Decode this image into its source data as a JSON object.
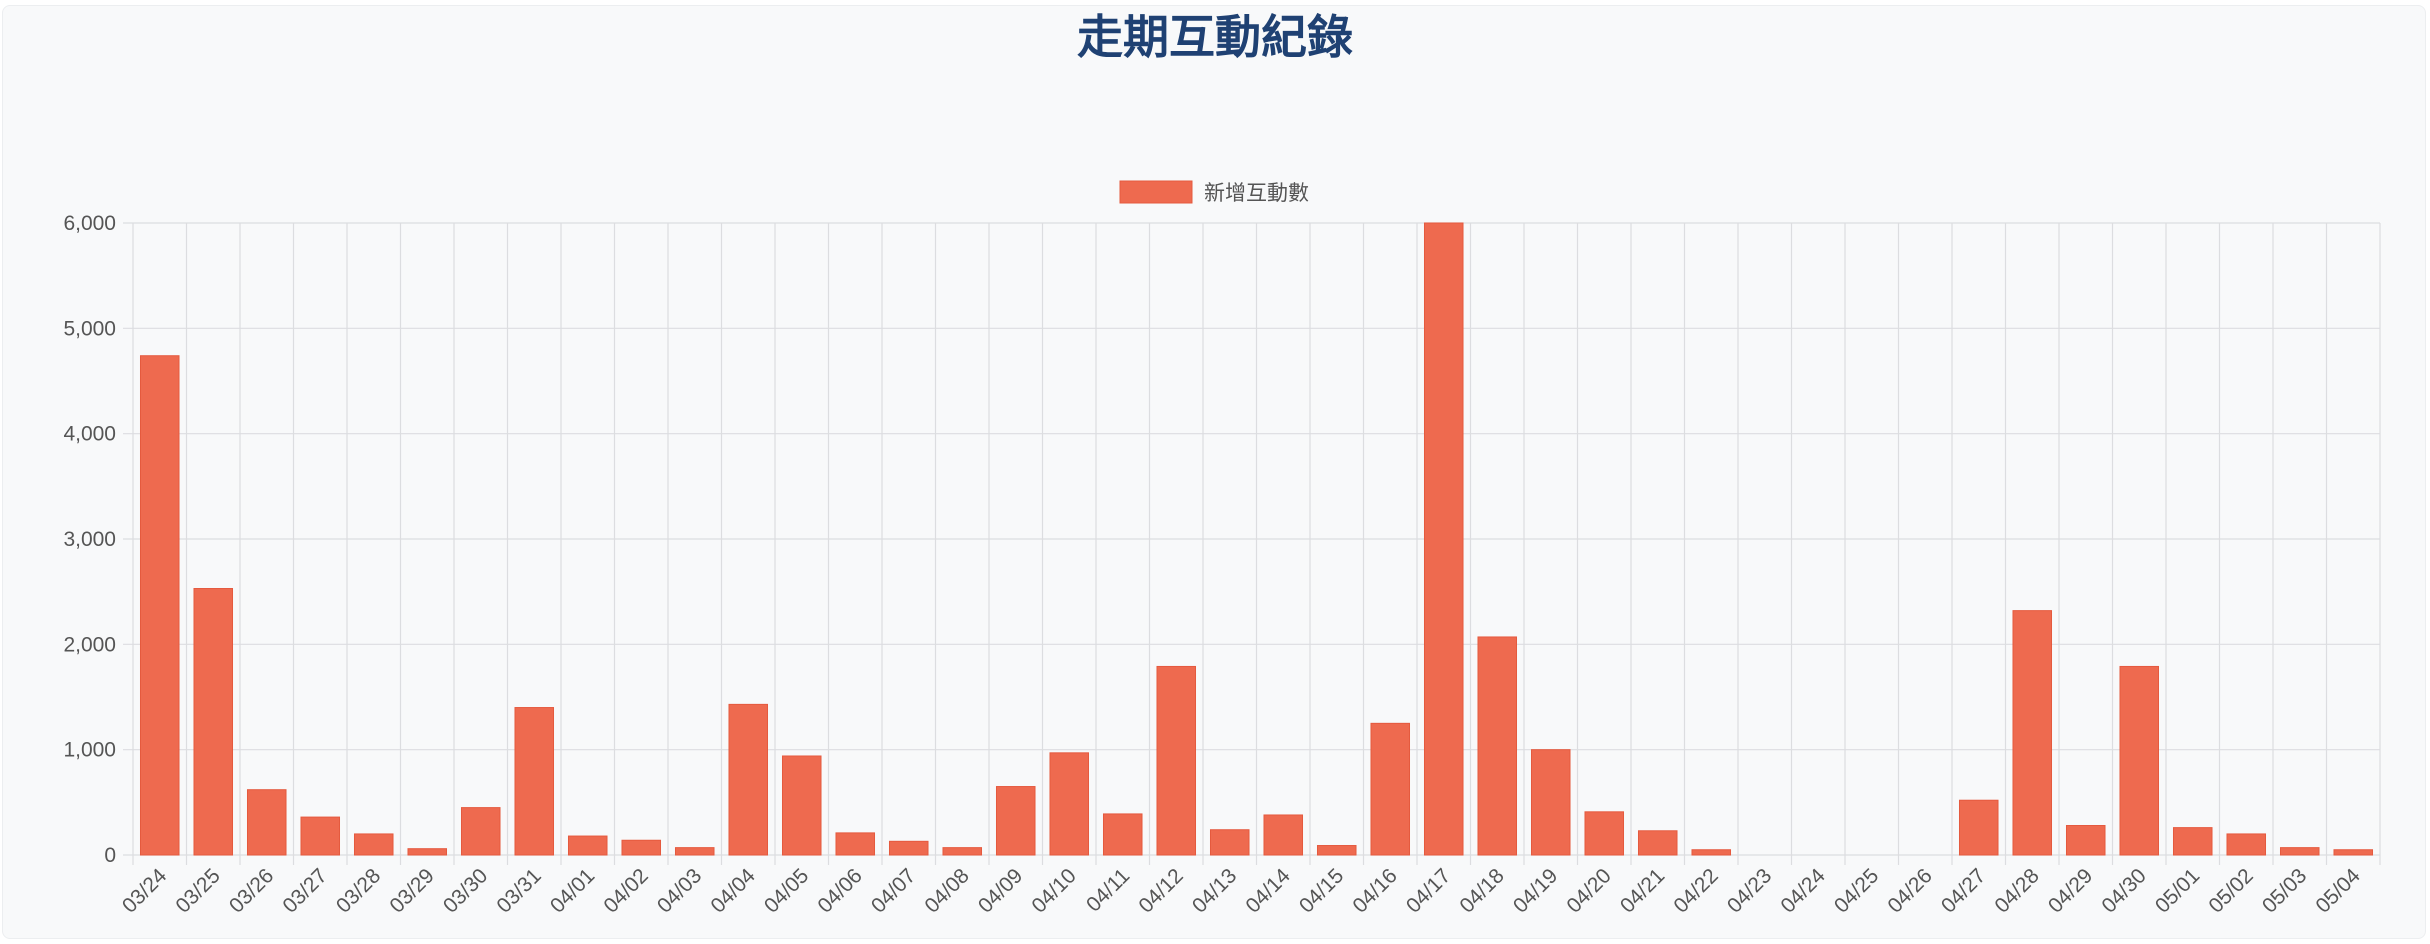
{
  "page": {
    "title": "走期互動紀錄"
  },
  "colors": {
    "bar": "#ee6a4f",
    "bar_border": "#e55a3f",
    "grid": "#dcdde0",
    "axis_text": "#555555",
    "title": "#1f4173"
  },
  "chart_data": {
    "type": "bar",
    "title": "走期互動紀錄",
    "xlabel": "",
    "ylabel": "",
    "ylim": [
      0,
      6000
    ],
    "yticks": [
      0,
      1000,
      2000,
      3000,
      4000,
      5000,
      6000
    ],
    "ytick_labels": [
      "0",
      "1,000",
      "2,000",
      "3,000",
      "4,000",
      "5,000",
      "6,000"
    ],
    "grid": true,
    "legend_position": "top-center",
    "categories": [
      "03/24",
      "03/25",
      "03/26",
      "03/27",
      "03/28",
      "03/29",
      "03/30",
      "03/31",
      "04/01",
      "04/02",
      "04/03",
      "04/04",
      "04/05",
      "04/06",
      "04/07",
      "04/08",
      "04/09",
      "04/10",
      "04/11",
      "04/12",
      "04/13",
      "04/14",
      "04/15",
      "04/16",
      "04/17",
      "04/18",
      "04/19",
      "04/20",
      "04/21",
      "04/22",
      "04/23",
      "04/24",
      "04/25",
      "04/26",
      "04/27",
      "04/28",
      "04/29",
      "04/30",
      "05/01",
      "05/02",
      "05/03",
      "05/04"
    ],
    "series": [
      {
        "name": "新增互動數",
        "values": [
          4740,
          2530,
          620,
          360,
          200,
          60,
          450,
          1400,
          180,
          140,
          70,
          1430,
          940,
          210,
          130,
          70,
          650,
          970,
          390,
          1790,
          240,
          380,
          90,
          1250,
          6000,
          2070,
          1000,
          410,
          230,
          50,
          0,
          0,
          0,
          0,
          520,
          2320,
          280,
          1790,
          260,
          200,
          70,
          50
        ]
      }
    ]
  }
}
